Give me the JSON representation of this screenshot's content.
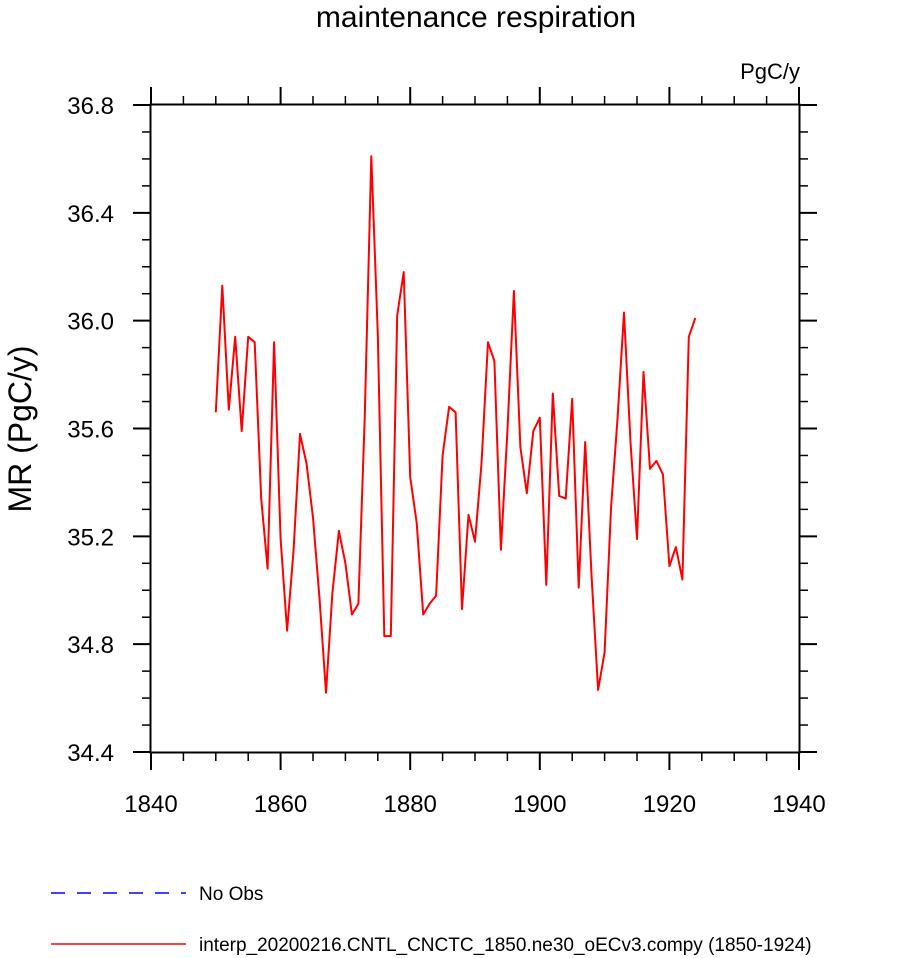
{
  "chart_data": {
    "type": "line",
    "title": "maintenance respiration",
    "units_label": "PgC/y",
    "ylabel": "MR  (PgC/y)",
    "xlabel": "",
    "xlim": [
      1840,
      1940
    ],
    "ylim": [
      34.4,
      36.8
    ],
    "x_ticks": [
      "1840",
      "1860",
      "1880",
      "1900",
      "1920",
      "1940"
    ],
    "y_ticks": [
      "34.4",
      "34.8",
      "35.2",
      "35.6",
      "36.0",
      "36.4",
      "36.8"
    ],
    "grid": false,
    "legend_position": "bottom",
    "series": [
      {
        "name": "interp_20200216.CNTL_CNCTC_1850.ne30_oECv3.compy (1850-1924)",
        "color": "#ff0000",
        "style": "solid",
        "x": [
          1850,
          1851,
          1852,
          1853,
          1854,
          1855,
          1856,
          1857,
          1858,
          1859,
          1860,
          1861,
          1862,
          1863,
          1864,
          1865,
          1866,
          1867,
          1868,
          1869,
          1870,
          1871,
          1872,
          1873,
          1874,
          1875,
          1876,
          1877,
          1878,
          1879,
          1880,
          1881,
          1882,
          1883,
          1884,
          1885,
          1886,
          1887,
          1888,
          1889,
          1890,
          1891,
          1892,
          1893,
          1894,
          1895,
          1896,
          1897,
          1898,
          1899,
          1900,
          1901,
          1902,
          1903,
          1904,
          1905,
          1906,
          1907,
          1908,
          1909,
          1910,
          1911,
          1912,
          1913,
          1914,
          1915,
          1916,
          1917,
          1918,
          1919,
          1920,
          1921,
          1922,
          1923,
          1924
        ],
        "values": [
          35.66,
          36.13,
          35.67,
          35.94,
          35.59,
          35.94,
          35.92,
          35.34,
          35.08,
          35.92,
          35.19,
          34.85,
          35.15,
          35.58,
          35.47,
          35.27,
          34.97,
          34.62,
          34.99,
          35.22,
          35.1,
          34.91,
          34.95,
          35.65,
          36.61,
          35.95,
          34.83,
          34.83,
          36.02,
          36.18,
          35.42,
          35.25,
          34.91,
          34.95,
          34.98,
          35.5,
          35.68,
          35.66,
          34.93,
          35.28,
          35.18,
          35.47,
          35.92,
          35.85,
          35.15,
          35.59,
          36.11,
          35.53,
          35.36,
          35.59,
          35.64,
          35.02,
          35.73,
          35.35,
          35.34,
          35.71,
          35.01,
          35.55,
          35.05,
          34.63,
          34.77,
          35.31,
          35.64,
          36.03,
          35.55,
          35.19,
          35.81,
          35.45,
          35.48,
          35.43,
          35.09,
          35.16,
          35.04,
          35.94,
          36.01
        ]
      }
    ],
    "legend": [
      {
        "label": "No Obs",
        "color": "#0000ff",
        "style": "dashed"
      },
      {
        "label": "interp_20200216.CNTL_CNCTC_1850.ne30_oECv3.compy (1850-1924)",
        "color": "#ff0000",
        "style": "solid"
      }
    ]
  }
}
